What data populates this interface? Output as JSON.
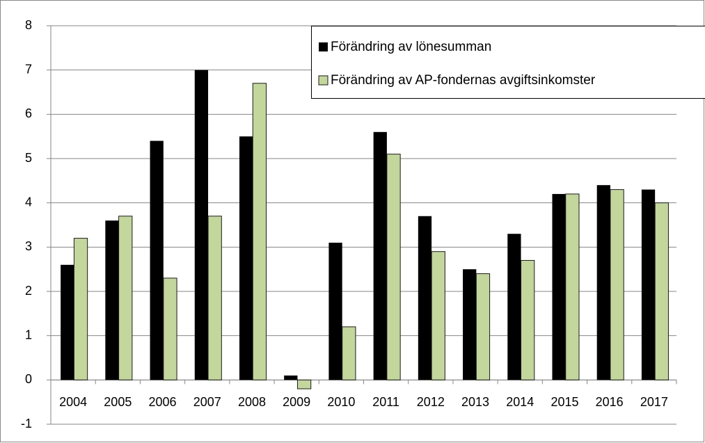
{
  "chart_data": {
    "type": "bar",
    "categories": [
      "2004",
      "2005",
      "2006",
      "2007",
      "2008",
      "2009",
      "2010",
      "2011",
      "2012",
      "2013",
      "2014",
      "2015",
      "2016",
      "2017"
    ],
    "series": [
      {
        "name": "Förändring av lönesumman",
        "color": "#000000",
        "values": [
          2.6,
          3.6,
          5.4,
          7.0,
          5.5,
          0.1,
          3.1,
          5.6,
          3.7,
          2.5,
          3.3,
          4.2,
          4.4,
          4.3
        ]
      },
      {
        "name": "Förändring av AP-fondernas avgiftsinkomster",
        "color": "#c3d69b",
        "values": [
          3.2,
          3.7,
          2.3,
          3.7,
          6.7,
          -0.2,
          1.2,
          5.1,
          2.9,
          2.4,
          2.7,
          4.2,
          4.3,
          4.0
        ]
      }
    ],
    "ylim": [
      -1,
      8
    ],
    "yticks": [
      -1,
      0,
      1,
      2,
      3,
      4,
      5,
      6,
      7,
      8
    ],
    "grid": true,
    "legend": "top-right"
  }
}
